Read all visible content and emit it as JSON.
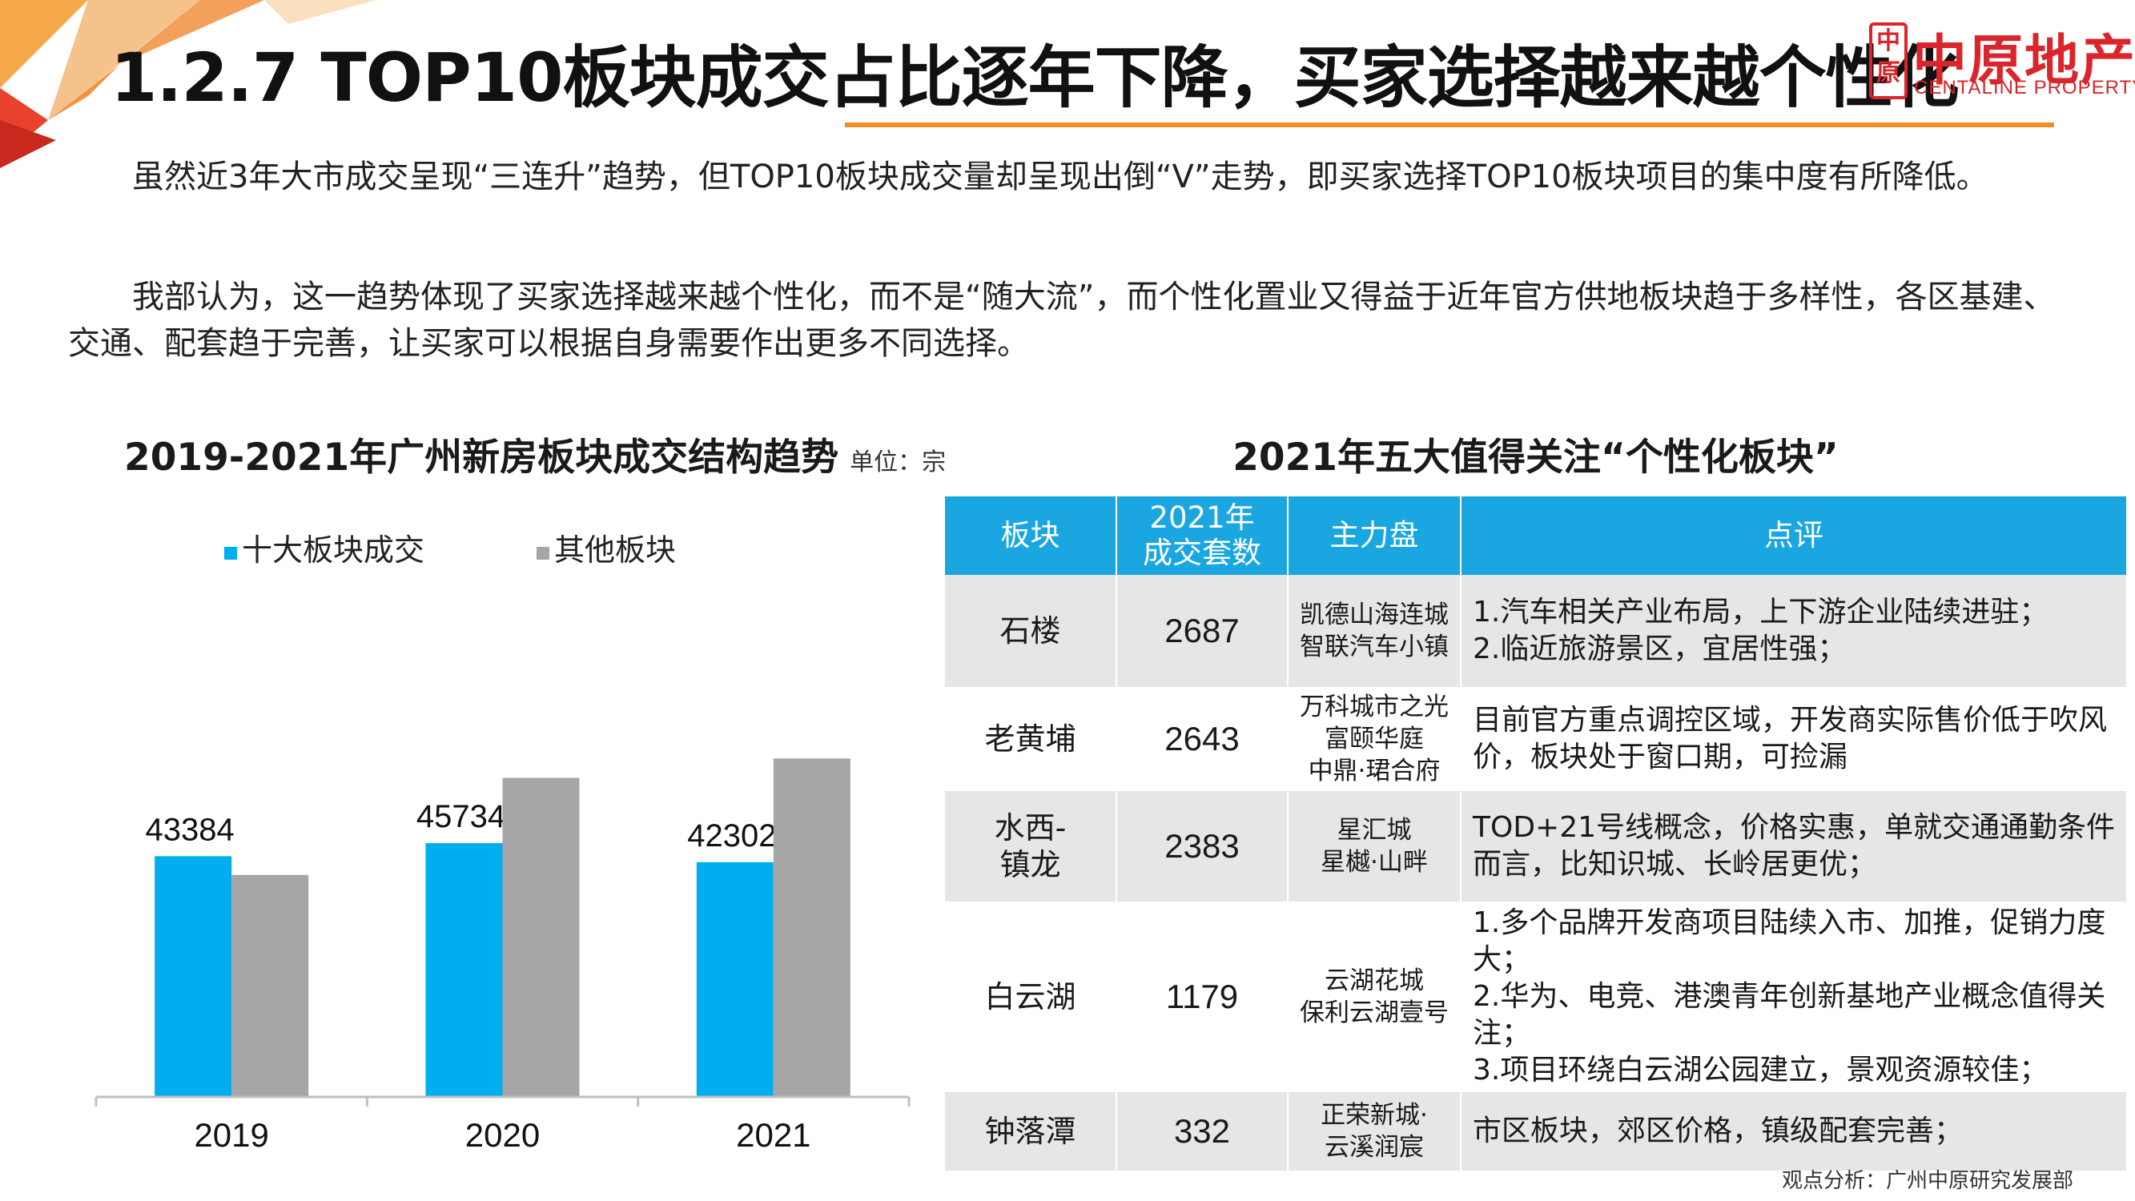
{
  "header": {
    "title": "1.2.7 TOP10板块成交占比逐年下降，买家选择越来越个性化",
    "logo_cn": "中原地产",
    "logo_en": "CENTALINE PROPERTY",
    "logo_seal": "中原"
  },
  "body": {
    "paragraph_1": "虽然近3年大市成交呈现“三连升”趋势，但TOP10板块成交量却呈现出倒“V”走势，即买家选择TOP10板块项目的集中度有所降低。",
    "paragraph_2": "我部认为，这一趋势体现了买家选择越来越个性化，而不是“随大流”，而个性化置业又得益于近年官方供地板块趋于多样性，各区基建、交通、配套趋于完善，让买家可以根据自身需要作出更多不同选择。"
  },
  "chart": {
    "title": "2019-2021年广州新房板块成交结构趋势",
    "unit": "单位：宗"
  },
  "chart_data": {
    "type": "bar",
    "categories": [
      "2019",
      "2020",
      "2021"
    ],
    "series": [
      {
        "name": "十大板块成交",
        "values": [
          43384,
          45734,
          42302
        ],
        "color": "#00aeef",
        "show_labels": true
      },
      {
        "name": "其他板块",
        "values": [
          40000,
          57500,
          61000
        ],
        "color": "#a6a6a6",
        "show_labels": false
      }
    ],
    "ylim": [
      0,
      100000
    ],
    "legend_position": "top",
    "grid": false,
    "xlabel": "",
    "ylabel": ""
  },
  "table": {
    "title": "2021年五大值得关注“个性化板块”",
    "headers": [
      "板块",
      "2021年\n成交套数",
      "主力盘",
      "点评"
    ],
    "rows": [
      {
        "name": "石楼",
        "count": "2687",
        "projects": "凯德山海连城\n智联汽车小镇",
        "comment": "1.汽车相关产业布局，上下游企业陆续进驻；\n2.临近旅游景区，宜居性强；"
      },
      {
        "name": "老黄埔",
        "count": "2643",
        "projects": "万科城市之光\n富颐华庭\n中鼎·珺合府",
        "comment": "目前官方重点调控区域，开发商实际售价低于吹风价，板块处于窗口期，可捡漏"
      },
      {
        "name": "水西-\n镇龙",
        "count": "2383",
        "projects": "星汇城\n星樾·山畔",
        "comment": "TOD+21号线概念，价格实惠，单就交通通勤条件而言，比知识城、长岭居更优；"
      },
      {
        "name": "白云湖",
        "count": "1179",
        "projects": "云湖花城\n保利云湖壹号",
        "comment": "1.多个品牌开发商项目陆续入市、加推，促销力度大；\n2.华为、电竞、港澳青年创新基地产业概念值得关注；\n3.项目环绕白云湖公园建立，景观资源较佳；"
      },
      {
        "name": "钟落潭",
        "count": "332",
        "projects": "正荣新城·\n云溪润宸",
        "comment": "市区板块，郊区价格，镇级配套完善；"
      }
    ]
  },
  "footer": {
    "source": "观点分析：广州中原研究发展部"
  }
}
